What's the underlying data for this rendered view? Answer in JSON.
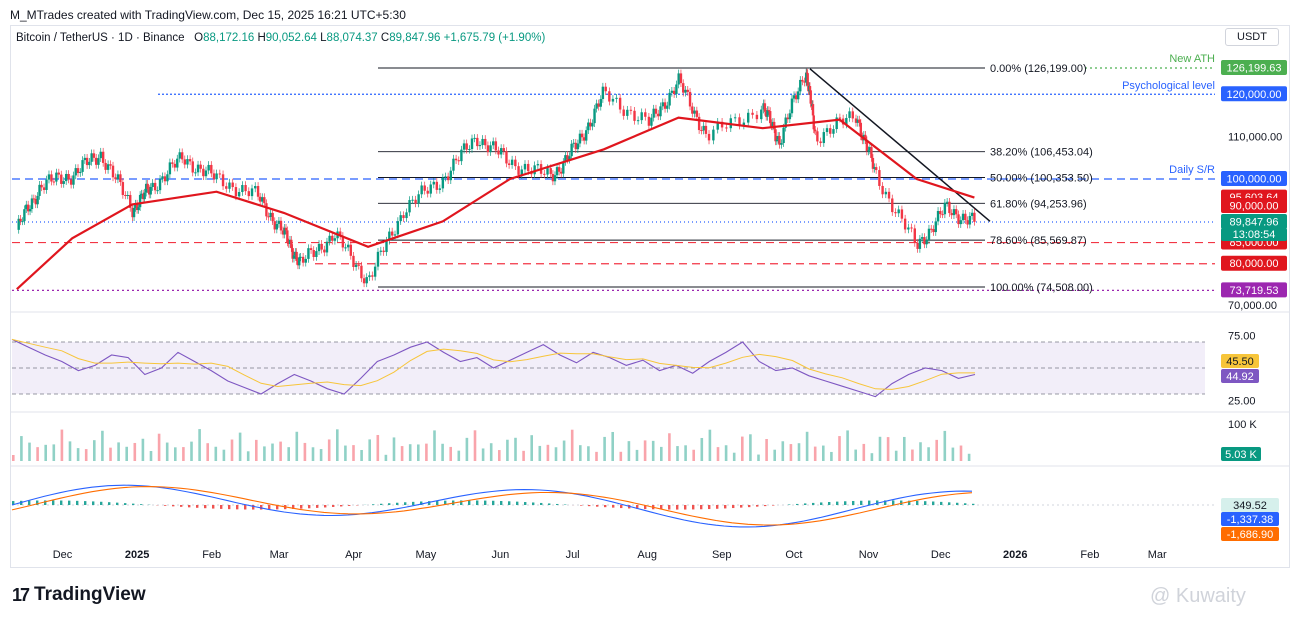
{
  "header": {
    "creator_line": "M_MTrades created with TradingView.com, Dec 15, 2025 16:21 UTC+5:30"
  },
  "symbol": {
    "name": "Bitcoin / TetherUS · 1D · Binance",
    "o_label": "O",
    "o_value": "88,172.16",
    "h_label": "H",
    "h_value": "90,052.64",
    "l_label": "L",
    "l_value": "88,074.37",
    "c_label": "C",
    "c_value": "89,847.96",
    "change": "+1,675.79 (+1.90%)"
  },
  "currency": "USDT",
  "colors": {
    "up": "#089981",
    "down": "#f23645",
    "ema": "#e0161e",
    "rsi": "#7e57c2",
    "rsi_ma": "#f7c53a",
    "macd": "#2962ff",
    "signal": "#ff6d00",
    "accent_green": "#4caf50"
  },
  "chart_data": {
    "type": "line",
    "title": "Bitcoin / TetherUS · 1D · Binance",
    "x_tick_labels": [
      "Dec",
      "2025",
      "Feb",
      "Mar",
      "Apr",
      "May",
      "Jun",
      "Jul",
      "Aug",
      "Sep",
      "Oct",
      "Nov",
      "Dec",
      "2026",
      "Feb",
      "Mar"
    ],
    "price_axis_labels": [
      "110,000.00",
      "70,000.00"
    ],
    "price_points": [
      [
        "2024-11-12",
        88000
      ],
      [
        "2024-11-22",
        98500
      ],
      [
        "2024-12-05",
        101000
      ],
      [
        "2024-12-17",
        106000
      ],
      [
        "2024-12-30",
        93000
      ],
      [
        "2025-01-07",
        98000
      ],
      [
        "2025-01-20",
        105000
      ],
      [
        "2025-02-03",
        100000
      ],
      [
        "2025-02-20",
        96000
      ],
      [
        "2025-03-03",
        87000
      ],
      [
        "2025-03-10",
        80000
      ],
      [
        "2025-03-24",
        87000
      ],
      [
        "2025-04-07",
        76000
      ],
      [
        "2025-04-22",
        93000
      ],
      [
        "2025-05-08",
        100000
      ],
      [
        "2025-05-22",
        110000
      ],
      [
        "2025-06-05",
        104000
      ],
      [
        "2025-06-22",
        100500
      ],
      [
        "2025-07-03",
        108000
      ],
      [
        "2025-07-14",
        120000
      ],
      [
        "2025-08-02",
        113000
      ],
      [
        "2025-08-14",
        123000
      ],
      [
        "2025-08-26",
        110000
      ],
      [
        "2025-09-18",
        117000
      ],
      [
        "2025-09-25",
        109000
      ],
      [
        "2025-10-06",
        126000
      ],
      [
        "2025-10-10",
        110000
      ],
      [
        "2025-10-27",
        115000
      ],
      [
        "2025-11-04",
        101000
      ],
      [
        "2025-11-21",
        84000
      ],
      [
        "2025-12-03",
        93000
      ],
      [
        "2025-12-15",
        89848
      ]
    ],
    "ema_points": [
      [
        "2024-11-12",
        74000
      ],
      [
        "2024-12-05",
        86000
      ],
      [
        "2024-12-30",
        94000
      ],
      [
        "2025-02-03",
        97000
      ],
      [
        "2025-03-03",
        92000
      ],
      [
        "2025-04-07",
        84000
      ],
      [
        "2025-05-08",
        90000
      ],
      [
        "2025-06-05",
        100000
      ],
      [
        "2025-07-14",
        107000
      ],
      [
        "2025-08-14",
        114500
      ],
      [
        "2025-09-18",
        112000
      ],
      [
        "2025-10-20",
        114000
      ],
      [
        "2025-11-21",
        100000
      ],
      [
        "2025-12-15",
        95604
      ]
    ],
    "fib": {
      "levels": [
        {
          "label": "0.00% (126,199.00)",
          "value": 126199
        },
        {
          "label": "38.20% (106,453.04)",
          "value": 106453.04
        },
        {
          "label": "50.00% (100,353.50)",
          "value": 100353.5
        },
        {
          "label": "61.80% (94,253.96)",
          "value": 94253.96
        },
        {
          "label": "78.60% (85,569.87)",
          "value": 85569.87
        },
        {
          "label": "100.00% (74,508.00)",
          "value": 74508
        }
      ]
    },
    "annotations": {
      "new_ath": "New ATH",
      "psychological": "Psychological level",
      "daily_sr": "Daily S/R"
    },
    "price_tags": [
      {
        "text": "126,199.63",
        "value": 126199.63,
        "color": "#4caf50"
      },
      {
        "text": "120,000.00",
        "value": 120000,
        "color": "#2962ff"
      },
      {
        "text": "100,000.00",
        "value": 100000,
        "color": "#2962ff"
      },
      {
        "text": "95,603.64",
        "value": 95603.64,
        "color": "#e0161e"
      },
      {
        "text": "90,000.00",
        "value": 90000,
        "color": "#e0161e"
      },
      {
        "text": "89,847.96",
        "value": 89847.96,
        "color": "#089981"
      },
      {
        "text": "85,000.00",
        "value": 85000,
        "color": "#e0161e"
      },
      {
        "text": "80,000.00",
        "value": 80000,
        "color": "#e0161e"
      },
      {
        "text": "73,719.53",
        "value": 73719.53,
        "color": "#9c27b0"
      }
    ],
    "countdown": "13:08:54",
    "rsi": {
      "axis_labels": [
        "75.00",
        "25.00"
      ],
      "value": "44.92",
      "ma": "45.50",
      "points": [
        72,
        66,
        60,
        55,
        48,
        52,
        60,
        58,
        45,
        50,
        62,
        55,
        48,
        40,
        35,
        30,
        38,
        45,
        40,
        34,
        30,
        42,
        55,
        60,
        66,
        70,
        62,
        55,
        58,
        50,
        56,
        62,
        68,
        60,
        54,
        62,
        58,
        52,
        56,
        48,
        52,
        46,
        55,
        62,
        70,
        55,
        48,
        50,
        44,
        40,
        36,
        32,
        28,
        38,
        45,
        50,
        48,
        42,
        45
      ]
    },
    "volume": {
      "axis_label": "100 K",
      "value": "5.03 K"
    },
    "macd": {
      "histogram_value": "349.52",
      "macd_value": "-1,337.38",
      "signal_value": "-1,686.90"
    }
  },
  "brand": {
    "logo": "17",
    "name": "TradingView"
  },
  "watermark": "@ Kuwaity"
}
